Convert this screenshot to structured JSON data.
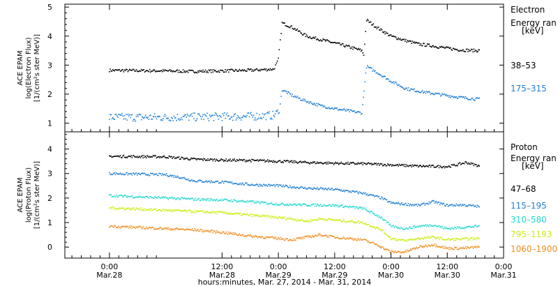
{
  "chart_data": [
    {
      "type": "scatter",
      "panel": "electron",
      "ylabel_lines": [
        "ACE EPAM",
        "log(Electron Flux)",
        "[1/(cm²s ster MeV)]"
      ],
      "legend_title": [
        "Electron",
        "Energy ran",
        "[keV]"
      ],
      "ylim": [
        0.7,
        5.1
      ],
      "yticks": [
        1,
        2,
        3,
        4,
        5
      ],
      "series": [
        {
          "name": "38–53",
          "color": "#000000",
          "points": [
            [
              -12,
              2.82
            ],
            [
              0,
              2.8
            ],
            [
              6,
              2.78
            ],
            [
              12,
              2.8
            ],
            [
              18,
              2.82
            ],
            [
              23,
              2.86
            ],
            [
              23.8,
              3.1
            ],
            [
              24,
              3.2
            ],
            [
              24.8,
              4.45
            ],
            [
              27,
              4.3
            ],
            [
              30,
              4.0
            ],
            [
              33,
              3.88
            ],
            [
              36,
              3.76
            ],
            [
              39,
              3.63
            ],
            [
              41.8,
              3.5
            ],
            [
              42.2,
              3.35
            ],
            [
              42.8,
              4.55
            ],
            [
              45,
              4.3
            ],
            [
              48,
              4.0
            ],
            [
              51,
              3.85
            ],
            [
              54,
              3.72
            ],
            [
              57,
              3.66
            ],
            [
              60,
              3.58
            ],
            [
              63,
              3.52
            ],
            [
              66,
              3.5
            ],
            [
              67,
              3.5
            ]
          ]
        },
        {
          "name": "175–315",
          "color": "#1e7fd6",
          "points": [
            [
              -12,
              1.2
            ],
            [
              0,
              1.2
            ],
            [
              6,
              1.21
            ],
            [
              12,
              1.22
            ],
            [
              18,
              1.23
            ],
            [
              23,
              1.27
            ],
            [
              24.2,
              1.4
            ],
            [
              24.8,
              2.15
            ],
            [
              27,
              1.95
            ],
            [
              30,
              1.75
            ],
            [
              33,
              1.6
            ],
            [
              36,
              1.5
            ],
            [
              39,
              1.42
            ],
            [
              41.8,
              1.35
            ],
            [
              42.8,
              2.95
            ],
            [
              45,
              2.75
            ],
            [
              48,
              2.45
            ],
            [
              51,
              2.2
            ],
            [
              54,
              2.1
            ],
            [
              57,
              2.02
            ],
            [
              60,
              1.95
            ],
            [
              63,
              1.88
            ],
            [
              67,
              1.82
            ]
          ]
        }
      ]
    },
    {
      "type": "scatter",
      "panel": "proton",
      "ylabel_lines": [
        "ACE EPAM",
        "log(Proton Flux)",
        "[1/(cm²s ster MeV)]"
      ],
      "legend_title": [
        "Proton",
        "Energy ran",
        "[keV]"
      ],
      "ylim": [
        -0.45,
        4.7
      ],
      "yticks": [
        0,
        1,
        2,
        3,
        4
      ],
      "series": [
        {
          "name": "47–68",
          "color": "#000000",
          "points": [
            [
              -12,
              3.7
            ],
            [
              0,
              3.68
            ],
            [
              6,
              3.58
            ],
            [
              12,
              3.55
            ],
            [
              18,
              3.53
            ],
            [
              24,
              3.5
            ],
            [
              30,
              3.45
            ],
            [
              36,
              3.42
            ],
            [
              42,
              3.4
            ],
            [
              48,
              3.35
            ],
            [
              54,
              3.3
            ],
            [
              60,
              3.28
            ],
            [
              62,
              3.35
            ],
            [
              64,
              3.45
            ],
            [
              66,
              3.35
            ],
            [
              67,
              3.3
            ]
          ]
        },
        {
          "name": "115–195",
          "color": "#1e7fd6",
          "points": [
            [
              -12,
              3.0
            ],
            [
              0,
              2.95
            ],
            [
              3,
              2.85
            ],
            [
              6,
              2.7
            ],
            [
              12,
              2.65
            ],
            [
              18,
              2.55
            ],
            [
              24,
              2.5
            ],
            [
              30,
              2.4
            ],
            [
              36,
              2.35
            ],
            [
              42,
              2.2
            ],
            [
              46,
              2.0
            ],
            [
              48,
              1.8
            ],
            [
              51,
              1.75
            ],
            [
              54,
              1.7
            ],
            [
              57,
              1.85
            ],
            [
              60,
              1.7
            ],
            [
              63,
              1.72
            ],
            [
              67,
              1.65
            ]
          ]
        },
        {
          "name": "310–580",
          "color": "#22d8d0",
          "points": [
            [
              -12,
              2.1
            ],
            [
              0,
              2.0
            ],
            [
              6,
              1.95
            ],
            [
              12,
              1.92
            ],
            [
              18,
              1.85
            ],
            [
              24,
              1.75
            ],
            [
              30,
              1.72
            ],
            [
              36,
              1.7
            ],
            [
              42,
              1.58
            ],
            [
              46,
              1.2
            ],
            [
              48,
              0.85
            ],
            [
              51,
              0.75
            ],
            [
              54,
              0.85
            ],
            [
              57,
              0.9
            ],
            [
              60,
              0.75
            ],
            [
              63,
              0.8
            ],
            [
              67,
              0.85
            ]
          ]
        },
        {
          "name": "795–1193",
          "color": "#c8ee10",
          "points": [
            [
              -12,
              1.6
            ],
            [
              0,
              1.5
            ],
            [
              6,
              1.45
            ],
            [
              12,
              1.4
            ],
            [
              18,
              1.3
            ],
            [
              24,
              1.2
            ],
            [
              27,
              1.15
            ],
            [
              30,
              1.05
            ],
            [
              33,
              1.15
            ],
            [
              36,
              1.1
            ],
            [
              42,
              1.0
            ],
            [
              46,
              0.7
            ],
            [
              48,
              0.35
            ],
            [
              51,
              0.25
            ],
            [
              54,
              0.35
            ],
            [
              57,
              0.4
            ],
            [
              60,
              0.3
            ],
            [
              63,
              0.32
            ],
            [
              67,
              0.35
            ]
          ]
        },
        {
          "name": "1060–1900",
          "color": "#f08c1c",
          "points": [
            [
              -12,
              0.85
            ],
            [
              0,
              0.75
            ],
            [
              6,
              0.7
            ],
            [
              12,
              0.6
            ],
            [
              18,
              0.45
            ],
            [
              24,
              0.35
            ],
            [
              27,
              0.3
            ],
            [
              30,
              0.4
            ],
            [
              33,
              0.5
            ],
            [
              36,
              0.4
            ],
            [
              42,
              0.3
            ],
            [
              45,
              0.1
            ],
            [
              48,
              -0.2
            ],
            [
              51,
              -0.2
            ],
            [
              54,
              0
            ],
            [
              57,
              0.1
            ],
            [
              60,
              -0.05
            ],
            [
              63,
              -0.05
            ],
            [
              67,
              0.0
            ]
          ]
        }
      ]
    }
  ],
  "x_axis": {
    "ticks": [
      {
        "h": -12,
        "time": "0:00",
        "date": "Mar.28"
      },
      {
        "h": 12,
        "time": "12:00",
        "date": "Mar.28"
      },
      {
        "h": 24,
        "time": "0:00",
        "date": "Mar.29"
      },
      {
        "h": 36,
        "time": "12:00",
        "date": "Mar.29"
      },
      {
        "h": 48,
        "time": "0:00",
        "date": "Mar.30"
      },
      {
        "h": 60,
        "time": "12:00",
        "date": "Mar.30"
      },
      {
        "h": 72,
        "time": "0:00",
        "date": "Mar.31"
      }
    ],
    "label": "hours:minutes, Mar. 27, 2014 - Mar. 31, 2014"
  }
}
